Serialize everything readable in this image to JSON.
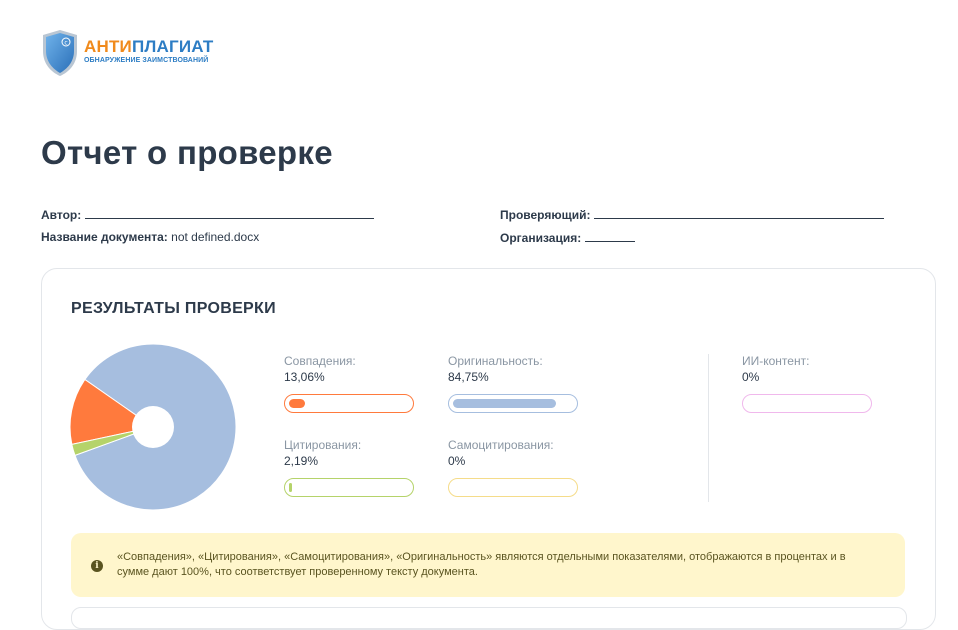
{
  "logo": {
    "brand_part1": "АНТИ",
    "brand_part2": "ПЛАГИАТ",
    "tagline": "ОБНАРУЖЕНИЕ ЗАИМСТВОВАНИЙ"
  },
  "report": {
    "title": "Отчет о проверке",
    "author_label": "Автор:",
    "document_label": "Название документа:",
    "document_value": "not defined.docx",
    "reviewer_label": "Проверяющий:",
    "organization_label": "Организация:"
  },
  "results": {
    "heading": "РЕЗУЛЬТАТЫ ПРОВЕРКИ",
    "matches": {
      "label": "Совпадения:",
      "value": "13,06%",
      "percent": 13.06,
      "color": "#ff7a3d"
    },
    "originality": {
      "label": "Оригинальность:",
      "value": "84,75%",
      "percent": 84.75,
      "color": "#a6bedf"
    },
    "citations": {
      "label": "Цитирования:",
      "value": "2,19%",
      "percent": 2.19,
      "color": "#b5d36a"
    },
    "self_citations": {
      "label": "Самоцитирования:",
      "value": "0%",
      "percent": 0,
      "color": "#f5dc8a"
    },
    "ai_content": {
      "label": "ИИ-контент:",
      "value": "0%",
      "percent": 0,
      "color": "#f0b8ec"
    },
    "note": "«Совпадения», «Цитирования», «Самоцитирования», «Оригинальность» являются отдельными показателями, отображаются в процентах и в сумме дают 100%, что соответствует проверенному тексту документа."
  },
  "chart_data": {
    "type": "pie",
    "categories": [
      "Оригинальность",
      "Совпадения",
      "Цитирования",
      "Самоцитирования"
    ],
    "values": [
      84.75,
      13.06,
      2.19,
      0
    ],
    "colors": [
      "#a6bedf",
      "#ff7a3d",
      "#b5d36a",
      "#f5dc8a"
    ]
  },
  "icons": {
    "info": "info-icon",
    "shield": "shield-logo-icon"
  }
}
